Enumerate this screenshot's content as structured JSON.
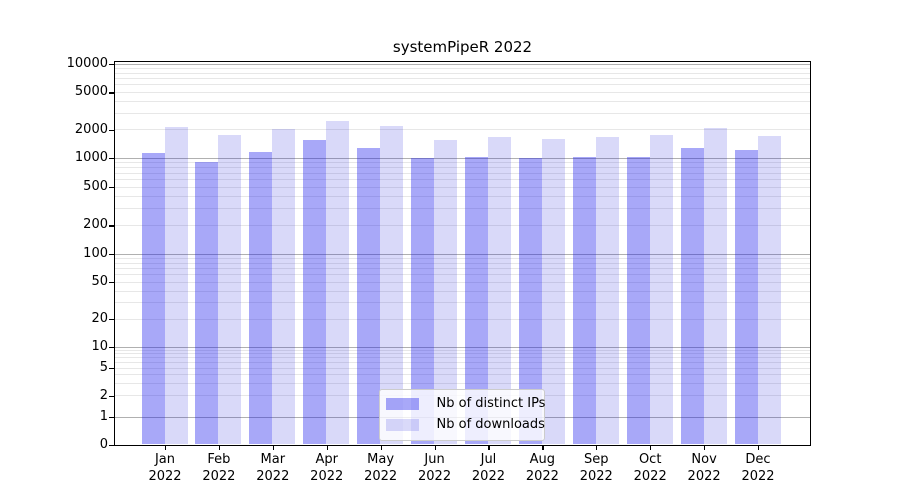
{
  "title": "systemPipeR 2022",
  "legend": {
    "items": [
      {
        "label": "Nb of distinct IPs",
        "color": "rgba(20,20,235,0.37)"
      },
      {
        "label": "Nb of downloads",
        "color": "rgba(20,20,215,0.16)"
      }
    ],
    "position": "lower center"
  },
  "colors": {
    "bar_distinct_ips": "rgba(20,20,235,0.37)",
    "bar_downloads": "rgba(20,20,215,0.16)",
    "grid_major": "#b0b0b0",
    "grid_minor": "#e7e7e7",
    "spine": "#000000",
    "background": "#ffffff"
  },
  "chart_data": {
    "type": "bar",
    "title": "systemPipeR 2022",
    "categories": [
      "Jan",
      "Feb",
      "Mar",
      "Apr",
      "May",
      "Jun",
      "Jul",
      "Aug",
      "Sep",
      "Oct",
      "Nov",
      "Dec"
    ],
    "category_year": "2022",
    "series": [
      {
        "name": "Nb of distinct IPs",
        "values": [
          1130,
          910,
          1140,
          1550,
          1270,
          1000,
          1020,
          1000,
          1010,
          1010,
          1270,
          1200
        ]
      },
      {
        "name": "Nb of downloads",
        "values": [
          2100,
          1750,
          2000,
          2450,
          2150,
          1540,
          1650,
          1600,
          1670,
          1750,
          2050,
          1700
        ]
      }
    ],
    "yscale": "symlog (linear 0-1, log10 above 1)",
    "y_ticks": [
      0,
      1,
      2,
      5,
      10,
      20,
      50,
      100,
      200,
      500,
      1000,
      2000,
      5000,
      10000
    ],
    "ylim": [
      0,
      10500
    ],
    "xlabel": "",
    "ylabel": "",
    "grid": "horizontal, log minors light + powers-of-10 darker",
    "legend_position": "lower center"
  }
}
